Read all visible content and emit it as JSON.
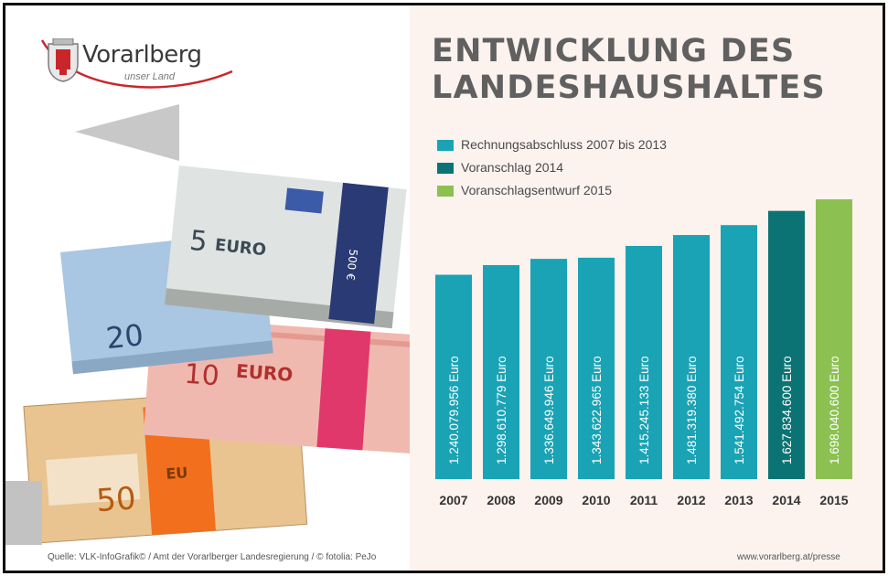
{
  "logo": {
    "name": "Vorarlberg",
    "tagline": "unser Land"
  },
  "title": {
    "line1": "ENTWICKLUNG DES",
    "line2": "LANDESHAUSHALTES"
  },
  "chart_data": {
    "type": "bar",
    "title": "ENTWICKLUNG DES LANDESHAUSHALTES",
    "xlabel": "",
    "ylabel": "",
    "categories": [
      "2007",
      "2008",
      "2009",
      "2010",
      "2011",
      "2012",
      "2013",
      "2014",
      "2015"
    ],
    "values": [
      1240079956,
      1298610779,
      1336649946,
      1343622965,
      1415245133,
      1481319380,
      1541492754,
      1627834600,
      1698040600
    ],
    "value_labels": [
      "1.240.079.956 Euro",
      "1.298.610.779 Euro",
      "1.336.649.946 Euro",
      "1.343.622.965 Euro",
      "1.415.245.133 Euro",
      "1.481.319.380 Euro",
      "1.541.492.754 Euro",
      "1.627.834.600 Euro",
      "1.698.040.600 Euro"
    ],
    "bar_groups": [
      0,
      0,
      0,
      0,
      0,
      0,
      0,
      1,
      2
    ],
    "legend": [
      {
        "label": "Rechnungsabschluss 2007 bis 2013",
        "color": "#1aa3b5"
      },
      {
        "label": "Voranschlag 2014",
        "color": "#0b7373"
      },
      {
        "label": "Voranschlagsentwurf 2015",
        "color": "#8cc151"
      }
    ],
    "legend_position": "top-left",
    "grid": false,
    "axes_visible": false
  },
  "colors": {
    "background_panel": "#fcf2ee",
    "title_text": "#606060",
    "logo_red": "#c9262c"
  },
  "footer": {
    "source": "Quelle: VLK-InfoGrafik©  /  Amt der Vorarlberger Landesregierung  /  © fotolia: PeJo",
    "url": "www.vorarlberg.at/presse"
  }
}
